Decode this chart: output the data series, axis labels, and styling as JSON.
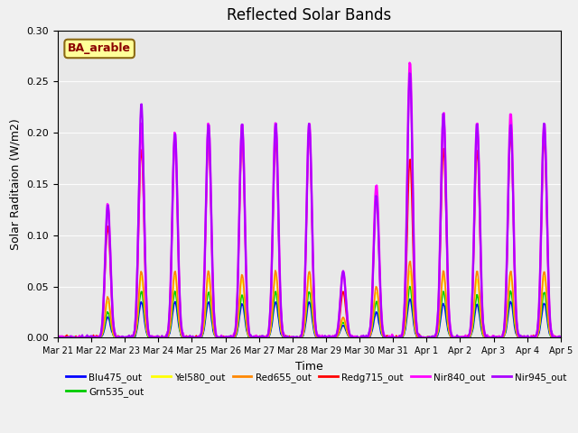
{
  "title": "Reflected Solar Bands",
  "xlabel": "Time",
  "ylabel": "Solar Raditaion (W/m2)",
  "ylim": [
    0,
    0.3
  ],
  "background_color": "#f0f0f0",
  "plot_bg_color": "#e8e8e8",
  "annotation_text": "BA_arable",
  "annotation_bg": "#ffff99",
  "annotation_border": "#8B6914",
  "annotation_text_color": "#8B0000",
  "series": {
    "Blu475_out": {
      "color": "#0000ff",
      "lw": 1.2
    },
    "Grn535_out": {
      "color": "#00cc00",
      "lw": 1.2
    },
    "Yel580_out": {
      "color": "#ffff00",
      "lw": 1.2
    },
    "Red655_out": {
      "color": "#ff8800",
      "lw": 1.2
    },
    "Redg715_out": {
      "color": "#ff0000",
      "lw": 1.2
    },
    "Nir840_out": {
      "color": "#ff00ff",
      "lw": 1.8
    },
    "Nir945_out": {
      "color": "#aa00ff",
      "lw": 1.5
    }
  },
  "xtick_labels": [
    "Mar 21",
    "Mar 22",
    "Mar 23",
    "Mar 24",
    "Mar 25",
    "Mar 26",
    "Mar 27",
    "Mar 28",
    "Mar 29",
    "Mar 30",
    "Mar 31",
    "Apr 1",
    "Apr 2",
    "Apr 3",
    "Apr 4",
    "Apr 5"
  ],
  "yticks": [
    0.0,
    0.05,
    0.1,
    0.15,
    0.2,
    0.25,
    0.3
  ],
  "n_days": 15,
  "points_per_day": 48,
  "nir840_peaks": [
    0.0,
    0.13,
    0.21,
    0.2,
    0.21,
    0.21,
    0.21,
    0.21,
    0.0,
    0.15,
    0.27,
    0.22,
    0.21,
    0.22,
    0.21
  ],
  "nir945_peaks": [
    0.0,
    0.13,
    0.23,
    0.2,
    0.21,
    0.21,
    0.21,
    0.21,
    0.0,
    0.14,
    0.26,
    0.22,
    0.21,
    0.21,
    0.21
  ],
  "redg715_peaks": [
    0.0,
    0.11,
    0.185,
    0.195,
    0.195,
    0.195,
    0.195,
    0.2,
    0.0,
    0.14,
    0.175,
    0.185,
    0.185,
    0.2,
    0.195
  ],
  "red655_peaks": [
    0.0,
    0.04,
    0.065,
    0.065,
    0.065,
    0.062,
    0.065,
    0.065,
    0.0,
    0.05,
    0.075,
    0.065,
    0.065,
    0.065,
    0.065
  ],
  "yel580_peaks": [
    0.0,
    0.035,
    0.06,
    0.06,
    0.058,
    0.057,
    0.06,
    0.06,
    0.0,
    0.045,
    0.065,
    0.06,
    0.057,
    0.06,
    0.06
  ],
  "grn535_peaks": [
    0.0,
    0.025,
    0.045,
    0.045,
    0.045,
    0.042,
    0.045,
    0.045,
    0.0,
    0.035,
    0.05,
    0.045,
    0.042,
    0.045,
    0.045
  ],
  "blu475_peaks": [
    0.0,
    0.02,
    0.035,
    0.035,
    0.035,
    0.033,
    0.035,
    0.035,
    0.0,
    0.025,
    0.038,
    0.033,
    0.032,
    0.035,
    0.034
  ],
  "cloudy_day_index": 8,
  "cloudy_peaks": {
    "Nir840_out": 0.065,
    "Nir945_out": 0.065,
    "Redg715_out": 0.045,
    "Red655_out": 0.02,
    "Yel580_out": 0.018,
    "Grn535_out": 0.015,
    "Blu475_out": 0.012
  }
}
